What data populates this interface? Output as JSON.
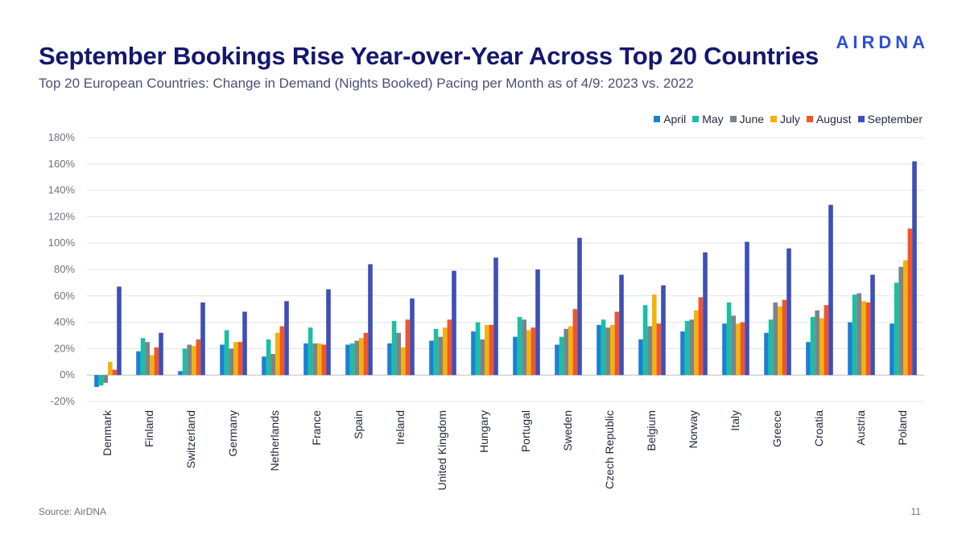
{
  "header": {
    "title": "September Bookings Rise Year-over-Year Across Top 20 Countries",
    "subtitle": "Top 20 European Countries: Change in Demand (Nights Booked) Pacing per Month as of 4/9: 2023 vs. 2022",
    "logo": "AIRDNA"
  },
  "footer": {
    "source": "Source: AirDNA",
    "page_number": "11"
  },
  "chart_data": {
    "type": "bar",
    "title": "",
    "xlabel": "",
    "ylabel": "",
    "ylim": [
      -20,
      180
    ],
    "y_ticks": [
      -20,
      0,
      20,
      40,
      60,
      80,
      100,
      120,
      140,
      160,
      180
    ],
    "y_tick_format": "percent",
    "grid": true,
    "legend_position": "top-right",
    "categories": [
      "Denmark",
      "Finland",
      "Switzerland",
      "Germany",
      "Netherlands",
      "France",
      "Spain",
      "Ireland",
      "United Kingdom",
      "Hungary",
      "Portugal",
      "Sweden",
      "Czech Republic",
      "Belgium",
      "Norway",
      "Italy",
      "Greece",
      "Croatia",
      "Austria",
      "Poland"
    ],
    "series": [
      {
        "name": "April",
        "color": "#1b7fd6",
        "values": [
          -9,
          18,
          3,
          23,
          14,
          24,
          23,
          24,
          26,
          33,
          29,
          23,
          38,
          27,
          33,
          39,
          32,
          25,
          40,
          39
        ]
      },
      {
        "name": "May",
        "color": "#18c0a2",
        "values": [
          -8,
          28,
          20,
          34,
          27,
          36,
          24,
          41,
          35,
          40,
          44,
          29,
          42,
          53,
          41,
          55,
          42,
          44,
          61,
          70
        ]
      },
      {
        "name": "June",
        "color": "#7a848c",
        "values": [
          -6,
          25,
          23,
          20,
          16,
          24,
          26,
          32,
          29,
          27,
          42,
          35,
          36,
          37,
          42,
          45,
          55,
          49,
          62,
          82
        ]
      },
      {
        "name": "July",
        "color": "#f4b20a",
        "values": [
          10,
          15,
          22,
          25,
          32,
          24,
          28,
          21,
          36,
          38,
          34,
          37,
          38,
          61,
          49,
          39,
          52,
          43,
          56,
          87
        ]
      },
      {
        "name": "August",
        "color": "#f2542d",
        "values": [
          4,
          21,
          27,
          25,
          37,
          23,
          32,
          42,
          42,
          38,
          36,
          50,
          48,
          39,
          59,
          40,
          57,
          53,
          55,
          111
        ]
      },
      {
        "name": "September",
        "color": "#3e4fb5",
        "values": [
          67,
          32,
          55,
          48,
          56,
          65,
          84,
          58,
          79,
          89,
          80,
          104,
          76,
          68,
          93,
          101,
          96,
          129,
          76,
          162
        ]
      }
    ]
  }
}
